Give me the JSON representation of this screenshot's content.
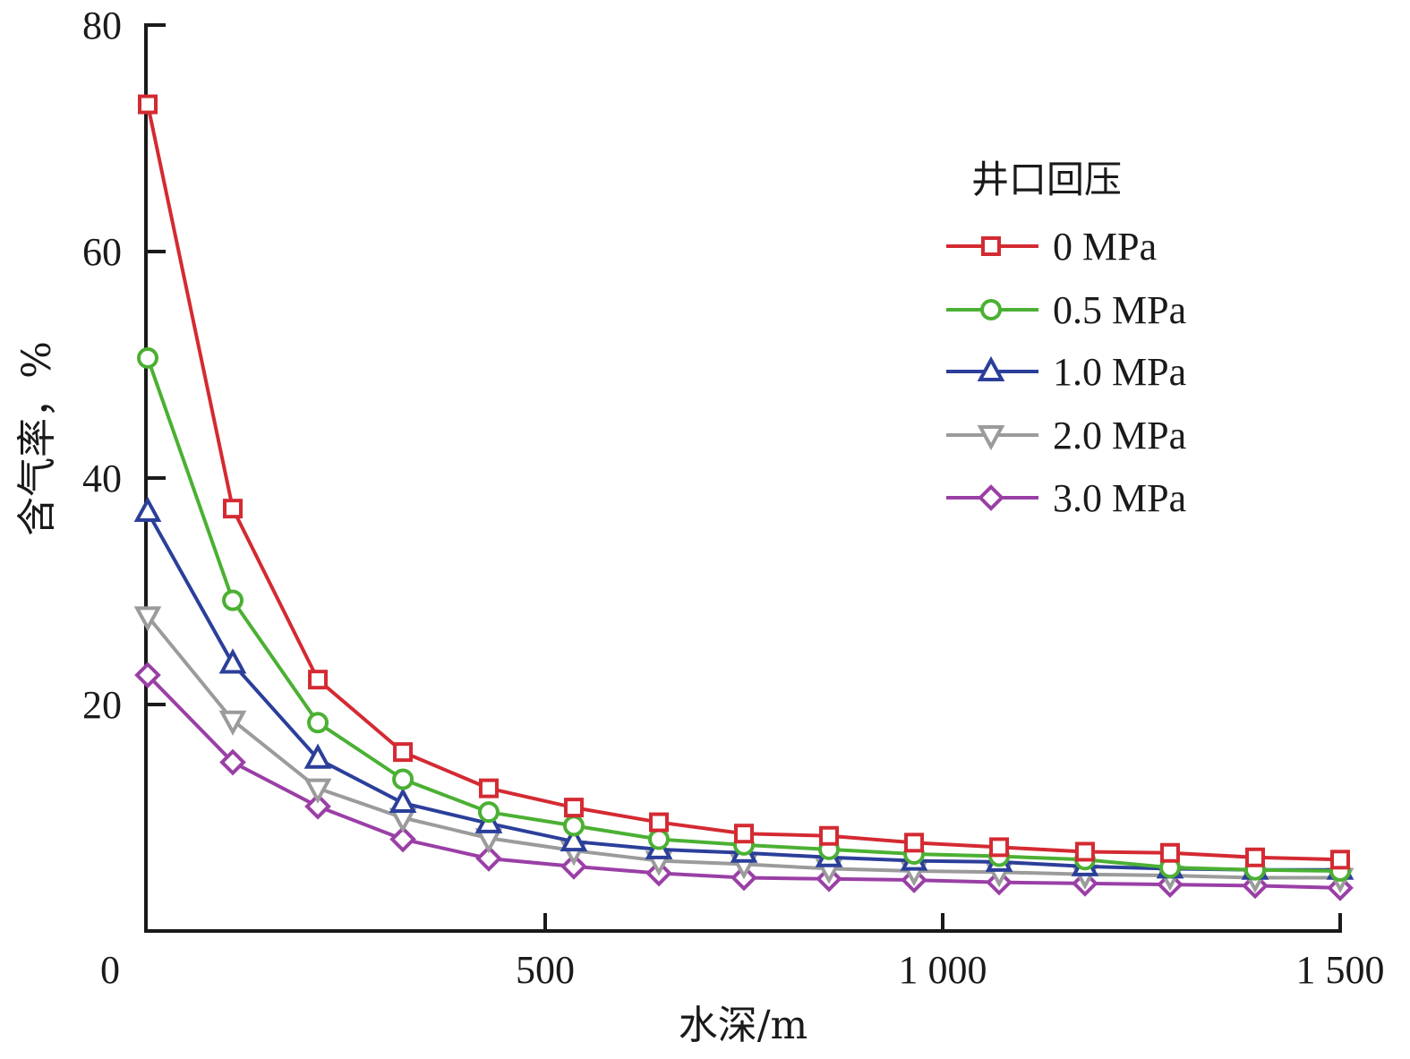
{
  "chart_data": {
    "type": "line",
    "title": "",
    "xlabel": "水深/m",
    "ylabel": "含气率，%",
    "xlim": [
      0,
      1500
    ],
    "ylim": [
      0,
      80
    ],
    "x_ticks": [
      0,
      500,
      1000,
      1500
    ],
    "x_tick_labels": [
      "0",
      "500",
      "1 000",
      "1 500"
    ],
    "y_ticks": [
      20,
      40,
      60,
      80
    ],
    "y_tick_labels": [
      "20",
      "40",
      "60",
      "80"
    ],
    "grid": false,
    "legend": {
      "title": "井口回压",
      "placement": "top-right"
    },
    "x": [
      0,
      107,
      214,
      321,
      429,
      536,
      643,
      750,
      857,
      964,
      1071,
      1179,
      1286,
      1393,
      1500
    ],
    "series": [
      {
        "name": "0 MPa",
        "color": "#d42a32",
        "marker": "square",
        "values": [
          73.0,
          37.3,
          22.2,
          15.8,
          12.6,
          10.9,
          9.6,
          8.6,
          8.4,
          7.8,
          7.4,
          7.0,
          6.9,
          6.5,
          6.3
        ]
      },
      {
        "name": "0.5 MPa",
        "color": "#4bb033",
        "marker": "circle",
        "values": [
          50.6,
          29.2,
          18.4,
          13.4,
          10.5,
          9.3,
          8.1,
          7.6,
          7.2,
          6.8,
          6.6,
          6.3,
          5.6,
          5.4,
          5.3
        ]
      },
      {
        "name": "1.0 MPa",
        "color": "#2b3f9a",
        "marker": "triangle-up",
        "values": [
          37.0,
          23.6,
          15.2,
          11.3,
          9.5,
          7.9,
          7.2,
          6.9,
          6.5,
          6.2,
          6.1,
          5.7,
          5.5,
          5.4,
          5.4
        ]
      },
      {
        "name": "2.0 MPa",
        "color": "#9b9b9b",
        "marker": "triangle-down",
        "values": [
          27.8,
          18.6,
          12.6,
          10.0,
          8.2,
          7.1,
          6.2,
          5.9,
          5.5,
          5.3,
          5.2,
          5.0,
          4.9,
          4.7,
          4.7
        ]
      },
      {
        "name": "3.0 MPa",
        "color": "#9a3fa6",
        "marker": "diamond",
        "values": [
          22.6,
          14.9,
          11.0,
          8.1,
          6.4,
          5.7,
          5.1,
          4.7,
          4.6,
          4.5,
          4.3,
          4.2,
          4.1,
          4.0,
          3.8
        ]
      }
    ]
  }
}
